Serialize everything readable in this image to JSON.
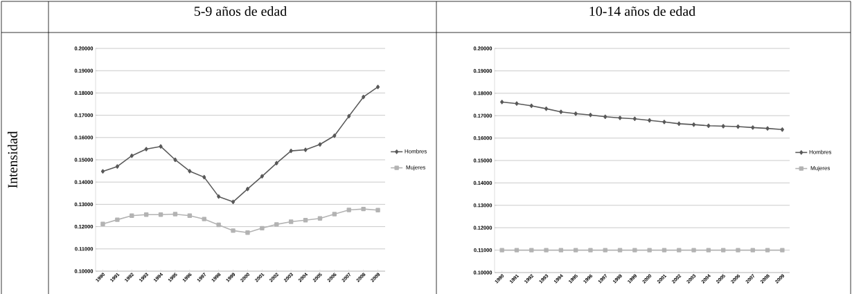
{
  "chart_data": [
    {
      "type": "line",
      "title": "5-9 años de edad",
      "ylabel": "Intensidad",
      "categories": [
        "1990",
        "1991",
        "1992",
        "1993",
        "1994",
        "1995",
        "1996",
        "1997",
        "1998",
        "1999",
        "2000",
        "2001",
        "2002",
        "2003",
        "2004",
        "2005",
        "2006",
        "2007",
        "2008",
        "2009"
      ],
      "series": [
        {
          "name": "Hombres",
          "color": "#595959",
          "marker": "diamond",
          "values": [
            0.1448,
            0.147,
            0.1518,
            0.1548,
            0.156,
            0.15,
            0.1449,
            0.1422,
            0.1335,
            0.1311,
            0.1369,
            0.1426,
            0.1485,
            0.154,
            0.1545,
            0.1569,
            0.1608,
            0.1696,
            0.1782,
            0.1827
          ]
        },
        {
          "name": "Mujeres",
          "color": "#b3b3b3",
          "marker": "square",
          "values": [
            0.1212,
            0.1231,
            0.1249,
            0.1254,
            0.1254,
            0.1256,
            0.1249,
            0.1234,
            0.1208,
            0.1182,
            0.1173,
            0.1193,
            0.121,
            0.1222,
            0.1229,
            0.1237,
            0.1256,
            0.1275,
            0.1279,
            0.1274
          ]
        }
      ],
      "ylim": [
        0.1,
        0.2
      ],
      "yticks": [
        {
          "value": 0.1,
          "label": "0.10000"
        },
        {
          "value": 0.11,
          "label": "0.11000"
        },
        {
          "value": 0.12,
          "label": "0.12000"
        },
        {
          "value": 0.13,
          "label": "0.13000"
        },
        {
          "value": 0.14,
          "label": "0.14000"
        },
        {
          "value": 0.15,
          "label": "0.15000"
        },
        {
          "value": 0.16,
          "label": "0.16000"
        },
        {
          "value": 0.17,
          "label": "0.17000"
        },
        {
          "value": 0.18,
          "label": "0.18000"
        },
        {
          "value": 0.19,
          "label": "0.19000"
        },
        {
          "value": 0.2,
          "label": "0.20000"
        }
      ],
      "grid": "y",
      "legend": "right"
    },
    {
      "type": "line",
      "title": "10-14 años de edad",
      "categories": [
        "1990",
        "1991",
        "1992",
        "1993",
        "1994",
        "1995",
        "1996",
        "1997",
        "1998",
        "1999",
        "2000",
        "2001",
        "2002",
        "2003",
        "2004",
        "2005",
        "2006",
        "2007",
        "2008",
        "2009"
      ],
      "series": [
        {
          "name": "Hombres",
          "color": "#595959",
          "marker": "diamond",
          "values": [
            0.1761,
            0.1754,
            0.1744,
            0.1731,
            0.1717,
            0.1709,
            0.1703,
            0.1695,
            0.169,
            0.1686,
            0.1679,
            0.1672,
            0.1664,
            0.166,
            0.1655,
            0.1653,
            0.1651,
            0.1647,
            0.1643,
            0.1638
          ]
        },
        {
          "name": "Mujeres",
          "color": "#b3b3b3",
          "marker": "square",
          "values": [
            0.11,
            0.11,
            0.11,
            0.11,
            0.11,
            0.11,
            0.11,
            0.11,
            0.11,
            0.11,
            0.11,
            0.11,
            0.11,
            0.11,
            0.11,
            0.11,
            0.11,
            0.11,
            0.11,
            0.11
          ]
        }
      ],
      "ylim": [
        0.1,
        0.2
      ],
      "yticks": [
        {
          "value": 0.1,
          "label": "0.10000"
        },
        {
          "value": 0.11,
          "label": "0.11000"
        },
        {
          "value": 0.12,
          "label": "0.12000"
        },
        {
          "value": 0.13,
          "label": "0.13000"
        },
        {
          "value": 0.14,
          "label": "0.14000"
        },
        {
          "value": 0.15,
          "label": "0.15000"
        },
        {
          "value": 0.16,
          "label": "0.16000"
        },
        {
          "value": 0.17,
          "label": "0.17000"
        },
        {
          "value": 0.18,
          "label": "0.18000"
        },
        {
          "value": 0.19,
          "label": "0.19000"
        },
        {
          "value": 0.2,
          "label": "0.20000"
        }
      ],
      "grid": "y",
      "legend": "right"
    }
  ]
}
